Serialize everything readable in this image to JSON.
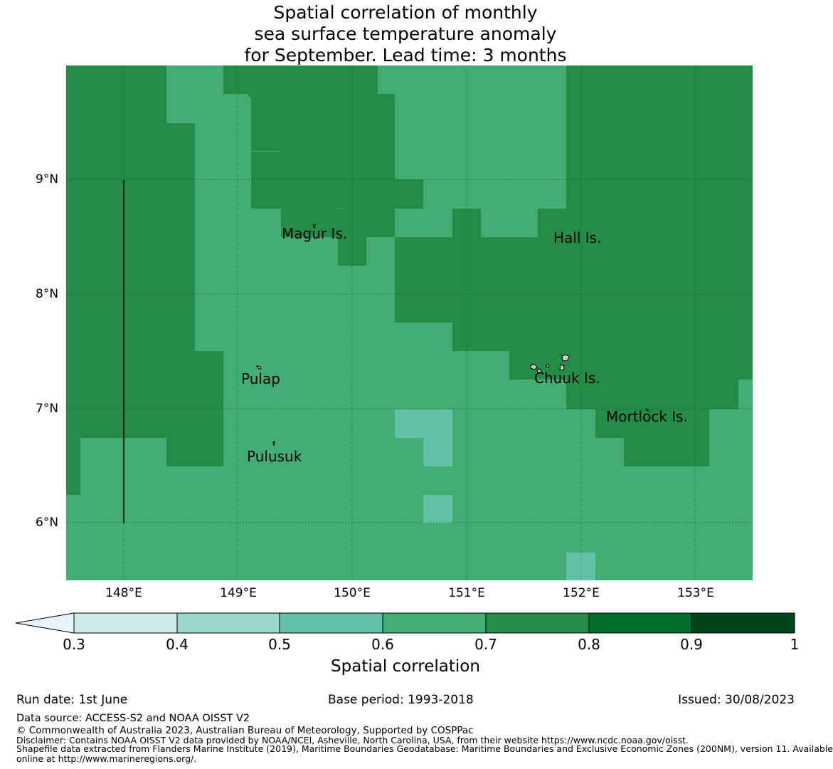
{
  "title_lines": [
    "Spatial correlation of monthly",
    "sea surface temperature anomaly",
    "for September. Lead time: 3 months"
  ],
  "map": {
    "latitude_labels": [
      "9°N",
      "8°N",
      "7°N",
      "6°N"
    ],
    "longitude_labels": [
      "148°E",
      "149°E",
      "150°E",
      "151°E",
      "152°E",
      "153°E"
    ],
    "place_labels": [
      "Magur Is.",
      "Hall Is.",
      "Pulap",
      "Chuuk Is.",
      "Mortlock Is.",
      "Pulusuk"
    ],
    "legend_colors": {
      "0.5-0.6": "#62c2a5",
      "0.6-0.7": "#41ad74",
      "0.7-0.8": "#238c45"
    }
  },
  "colorbar": {
    "tick_labels": [
      "0.3",
      "0.4",
      "0.5",
      "0.6",
      "0.7",
      "0.8",
      "0.9",
      "1"
    ],
    "colors": [
      "#ccebe5",
      "#99d8c9",
      "#62c2a5",
      "#41ad74",
      "#238c45",
      "#006d2c",
      "#00441b"
    ],
    "extend_color": "#e5f5f9",
    "label": "Spatial correlation"
  },
  "footer": {
    "run_date": "Run date: 1st June",
    "base_period": "Base period: 1993-2018",
    "issued": "Issued: 30/08/2023",
    "data_source": "Data source: ACCESS-S2 and NOAA OISST V2",
    "copyright": "© Commonwealth of Australia 2023, Australian Bureau of Meteorology, Supported by COSPPac",
    "disclaimer": "Disclaimer: Contains NOAA OISST V2 data provided by NOAA/NCEI, Asheville, North Carolina, USA, from their website https://www.ncdc.noaa.gov/oisst.",
    "shapefile_1": "Shapefile data extracted from Flanders Marine Institute (2019), Maritime Boundaries Geodatabase: Maritime Boundaries and Exclusive Economic Zones (200NM), version 11. Available",
    "shapefile_2": "online at http://www.marineregions.org/."
  }
}
